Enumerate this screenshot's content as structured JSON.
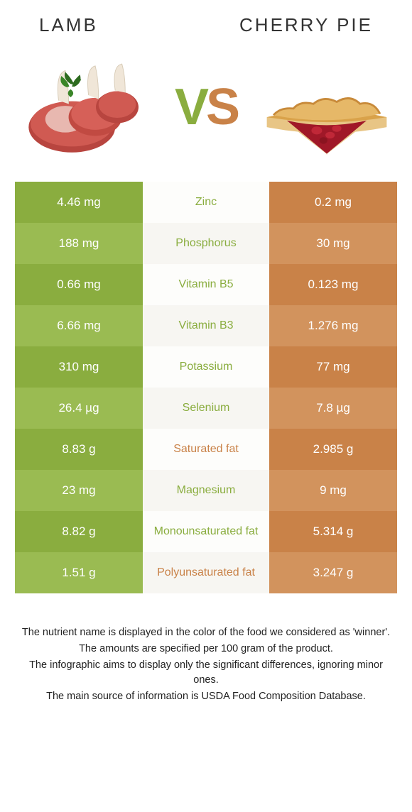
{
  "header": {
    "left_title": "Lamb",
    "right_title": "Cherry pie"
  },
  "vs": {
    "v": "V",
    "s": "S"
  },
  "colors": {
    "left_dark": "#8aad3f",
    "left_light": "#9abb52",
    "mid_bg": "#f7f6f2",
    "right_dark": "#c98248",
    "right_light": "#d2935d",
    "winner_left": "#8aad3f",
    "winner_right": "#c98248"
  },
  "rows": [
    {
      "left": "4.46 mg",
      "label": "Zinc",
      "right": "0.2 mg",
      "winner": "left"
    },
    {
      "left": "188 mg",
      "label": "Phosphorus",
      "right": "30 mg",
      "winner": "left"
    },
    {
      "left": "0.66 mg",
      "label": "Vitamin B5",
      "right": "0.123 mg",
      "winner": "left"
    },
    {
      "left": "6.66 mg",
      "label": "Vitamin B3",
      "right": "1.276 mg",
      "winner": "left"
    },
    {
      "left": "310 mg",
      "label": "Potassium",
      "right": "77 mg",
      "winner": "left"
    },
    {
      "left": "26.4 µg",
      "label": "Selenium",
      "right": "7.8 µg",
      "winner": "left"
    },
    {
      "left": "8.83 g",
      "label": "Saturated fat",
      "right": "2.985 g",
      "winner": "right"
    },
    {
      "left": "23 mg",
      "label": "Magnesium",
      "right": "9 mg",
      "winner": "left"
    },
    {
      "left": "8.82 g",
      "label": "Monounsaturated fat",
      "right": "5.314 g",
      "winner": "left"
    },
    {
      "left": "1.51 g",
      "label": "Polyunsaturated fat",
      "right": "3.247 g",
      "winner": "right"
    }
  ],
  "footer": {
    "line1": "The nutrient name is displayed in the color of the food we considered as 'winner'.",
    "line2": "The amounts are specified per 100 gram of the product.",
    "line3": "The infographic aims to display only the significant differences, ignoring minor ones.",
    "line4": "The main source of information is USDA Food Composition Database."
  }
}
